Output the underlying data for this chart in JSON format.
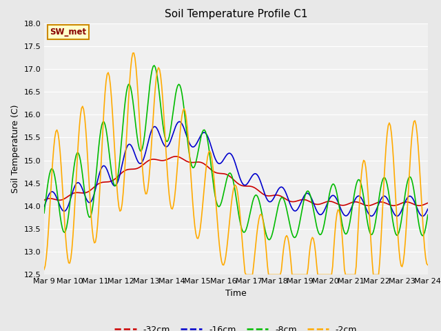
{
  "title": "Soil Temperature Profile C1",
  "xlabel": "Time",
  "ylabel": "Soil Temperature (C)",
  "ylim": [
    12.5,
    18.0
  ],
  "yticks": [
    12.5,
    13.0,
    13.5,
    14.0,
    14.5,
    15.0,
    15.5,
    16.0,
    16.5,
    17.0,
    17.5,
    18.0
  ],
  "xtick_labels": [
    "Mar 9",
    "Mar 10",
    "Mar 11",
    "Mar 12",
    "Mar 13",
    "Mar 14",
    "Mar 15",
    "Mar 16",
    "Mar 17",
    "Mar 18",
    "Mar 19",
    "Mar 20",
    "Mar 21",
    "Mar 22",
    "Mar 23",
    "Mar 24"
  ],
  "legend_labels": [
    "-32cm",
    "-16cm",
    "-8cm",
    "-2cm"
  ],
  "line_colors": [
    "#cc0000",
    "#0000cc",
    "#00bb00",
    "#ffaa00"
  ],
  "annotation_text": "SW_met",
  "annotation_bg": "#ffffcc",
  "annotation_border": "#cc8800",
  "annotation_text_color": "#880000",
  "fig_bg": "#e8e8e8",
  "ax_bg": "#f0f0f0",
  "grid_color": "#ffffff"
}
